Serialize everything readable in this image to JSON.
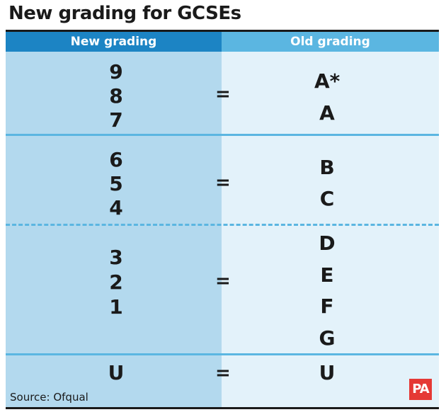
{
  "title": "New grading for GCSEs",
  "headers": {
    "new": "New grading",
    "old": "Old grading"
  },
  "rows": [
    {
      "new": [
        "9",
        "8",
        "7"
      ],
      "equals": "=",
      "old": [
        "A*",
        "A"
      ]
    },
    {
      "new": [
        "6",
        "5",
        "4"
      ],
      "equals": "=",
      "old": [
        "B",
        "C"
      ]
    },
    {
      "new": [
        "3",
        "2",
        "1"
      ],
      "equals": "=",
      "old": [
        "D",
        "E",
        "F",
        "G"
      ]
    },
    {
      "new": [
        "U"
      ],
      "equals": "=",
      "old": [
        "U"
      ]
    }
  ],
  "source": "Source: Ofqual",
  "logo_text": "PA",
  "colors": {
    "header_left": "#1c84c4",
    "header_right": "#5bb6e1",
    "column_left": "#b3d9ee",
    "column_right": "#e3f2fa",
    "divider": "#5bb6e1",
    "logo": "#e53935"
  }
}
